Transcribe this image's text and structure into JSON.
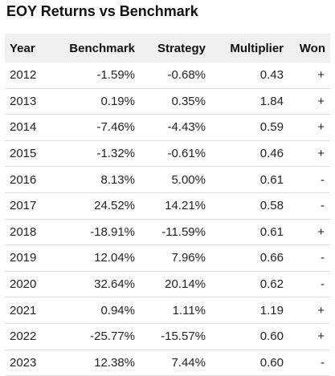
{
  "title": "EOY Returns vs Benchmark",
  "columns": [
    "Year",
    "Benchmark",
    "Strategy",
    "Multiplier",
    "Won"
  ],
  "rows": [
    {
      "year": "2012",
      "benchmark": "-1.59%",
      "strategy": "-0.68%",
      "multiplier": "0.43",
      "won": "+"
    },
    {
      "year": "2013",
      "benchmark": "0.19%",
      "strategy": "0.35%",
      "multiplier": "1.84",
      "won": "+"
    },
    {
      "year": "2014",
      "benchmark": "-7.46%",
      "strategy": "-4.43%",
      "multiplier": "0.59",
      "won": "+"
    },
    {
      "year": "2015",
      "benchmark": "-1.32%",
      "strategy": "-0.61%",
      "multiplier": "0.46",
      "won": "+"
    },
    {
      "year": "2016",
      "benchmark": "8.13%",
      "strategy": "5.00%",
      "multiplier": "0.61",
      "won": "-"
    },
    {
      "year": "2017",
      "benchmark": "24.52%",
      "strategy": "14.21%",
      "multiplier": "0.58",
      "won": "-"
    },
    {
      "year": "2018",
      "benchmark": "-18.91%",
      "strategy": "-11.59%",
      "multiplier": "0.61",
      "won": "+"
    },
    {
      "year": "2019",
      "benchmark": "12.04%",
      "strategy": "7.96%",
      "multiplier": "0.66",
      "won": "-"
    },
    {
      "year": "2020",
      "benchmark": "32.64%",
      "strategy": "20.14%",
      "multiplier": "0.62",
      "won": "-"
    },
    {
      "year": "2021",
      "benchmark": "0.94%",
      "strategy": "1.11%",
      "multiplier": "1.19",
      "won": "+"
    },
    {
      "year": "2022",
      "benchmark": "-25.77%",
      "strategy": "-15.57%",
      "multiplier": "0.60",
      "won": "+"
    },
    {
      "year": "2023",
      "benchmark": "12.38%",
      "strategy": "7.44%",
      "multiplier": "0.60",
      "won": "-"
    }
  ]
}
